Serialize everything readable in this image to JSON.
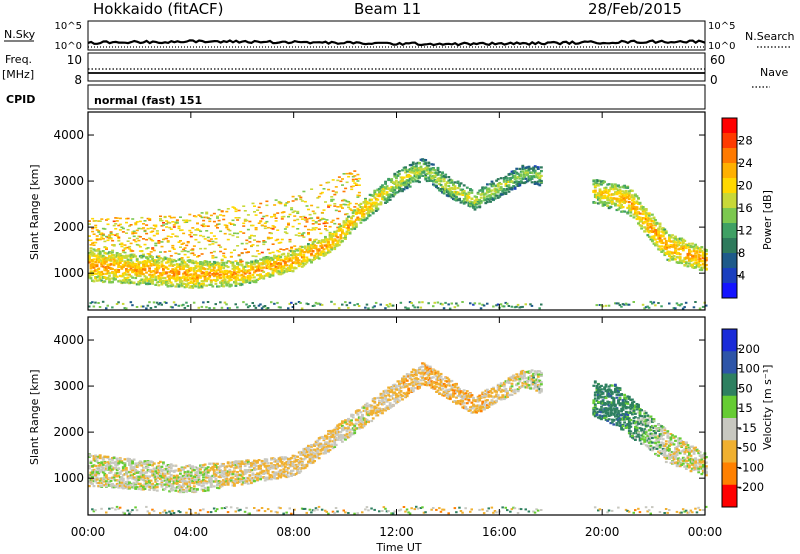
{
  "header": {
    "station": "Hokkaido (fitACF)",
    "beam": "Beam 11",
    "date": "28/Feb/2015"
  },
  "left_labels": {
    "nsky": "N.Sky",
    "freq": "Freq.",
    "mhz": "[MHz]",
    "cpid": "CPID"
  },
  "right_labels": {
    "nsearch": "N.Search",
    "nave": "Nave"
  },
  "noise_panel": {
    "ticks_left": [
      "10^5",
      "10^0"
    ],
    "ticks_right": [
      "10^5",
      "10^0"
    ]
  },
  "freq_panel": {
    "ticks_left": [
      "10",
      "8"
    ],
    "ticks_right": [
      "60",
      "0"
    ]
  },
  "cpid_panel": {
    "text": "normal (fast) 151"
  },
  "panels": {
    "power": {
      "ylabel": "Slant Range [km]",
      "cbar_label": "Power [dB]",
      "cbar_ticks": [
        "28",
        "24",
        "20",
        "16",
        "12",
        "8",
        "4"
      ],
      "cbar_colors": [
        "#ff0000",
        "#ff3b00",
        "#ff7a00",
        "#ffb000",
        "#ffd800",
        "#c8d838",
        "#7cc850",
        "#3fa064",
        "#2e7a5c",
        "#1e5a8a",
        "#1a3fbf",
        "#1414ff"
      ]
    },
    "velocity": {
      "ylabel": "Slant Range [km]",
      "cbar_label": "Velocity [m s⁻¹]",
      "cbar_ticks": [
        "200",
        "100",
        "50",
        "15",
        "-15",
        "-50",
        "-100",
        "-200"
      ],
      "cbar_colors": [
        "#1a2bd8",
        "#2e55a8",
        "#2e8060",
        "#66cc33",
        "#c8c8c0",
        "#f0b030",
        "#ff8000",
        "#ff0000"
      ]
    }
  },
  "xaxis": {
    "label": "Time UT",
    "ticks": [
      "00:00",
      "04:00",
      "08:00",
      "12:00",
      "16:00",
      "20:00",
      "00:00"
    ]
  },
  "yaxis_ticks": [
    "1000",
    "2000",
    "3000",
    "4000"
  ],
  "chart_data": [
    {
      "type": "heatmap",
      "title": "Hokkaido (fitACF) Beam 11 28/Feb/2015",
      "xlabel": "Time UT",
      "ylabel": "Slant Range [km]",
      "colorbar": "Power [dB]",
      "xlim": [
        "00:00",
        "24:00"
      ],
      "ylim": [
        200,
        4500
      ],
      "clim": [
        0,
        32
      ],
      "echo_band": [
        {
          "t": 0,
          "r": 1200,
          "w": 700,
          "p": 28
        },
        {
          "t": 2,
          "r": 1100,
          "w": 650,
          "p": 27
        },
        {
          "t": 4,
          "r": 1000,
          "w": 600,
          "p": 28
        },
        {
          "t": 6,
          "r": 1000,
          "w": 500,
          "p": 27
        },
        {
          "t": 8,
          "r": 1300,
          "w": 450,
          "p": 28
        },
        {
          "t": 9.5,
          "r": 1700,
          "w": 400,
          "p": 28
        },
        {
          "t": 10.5,
          "r": 2300,
          "w": 450,
          "p": 27
        },
        {
          "t": 12,
          "r": 3000,
          "w": 500,
          "p": 22
        },
        {
          "t": 13,
          "r": 3300,
          "w": 500,
          "p": 20
        },
        {
          "t": 14,
          "r": 2900,
          "w": 450,
          "p": 22
        },
        {
          "t": 15,
          "r": 2600,
          "w": 400,
          "p": 22
        },
        {
          "t": 16,
          "r": 2900,
          "w": 450,
          "p": 20
        },
        {
          "t": 17,
          "r": 3200,
          "w": 400,
          "p": 18
        },
        {
          "t": 21,
          "r": 2600,
          "w": 600,
          "p": 27
        },
        {
          "t": 22.5,
          "r": 1600,
          "w": 600,
          "p": 28
        },
        {
          "t": 24,
          "r": 1300,
          "w": 500,
          "p": 28
        }
      ],
      "diffuse_top": [
        {
          "t": 0,
          "r": 2200
        },
        {
          "t": 4,
          "r": 2300
        },
        {
          "t": 8,
          "r": 2700
        },
        {
          "t": 9.5,
          "r": 3100
        },
        {
          "t": 10.5,
          "r": 3300
        }
      ]
    },
    {
      "type": "heatmap",
      "title": "",
      "xlabel": "Time UT",
      "ylabel": "Slant Range [km]",
      "colorbar": "Velocity [m s⁻¹]",
      "xlim": [
        "00:00",
        "24:00"
      ],
      "ylim": [
        200,
        4500
      ],
      "clim": [
        -200,
        200
      ],
      "echo_band": [
        {
          "t": 0,
          "r": 1200,
          "w": 700,
          "v": 0
        },
        {
          "t": 4,
          "r": 1000,
          "w": 600,
          "v": 0
        },
        {
          "t": 8,
          "r": 1300,
          "w": 450,
          "v": -20
        },
        {
          "t": 10.5,
          "r": 2300,
          "w": 450,
          "v": -10
        },
        {
          "t": 13,
          "r": 3300,
          "w": 500,
          "v": -30
        },
        {
          "t": 15,
          "r": 2600,
          "w": 400,
          "v": -30
        },
        {
          "t": 17,
          "r": 3200,
          "w": 400,
          "v": 0
        },
        {
          "t": 20.5,
          "r": 2600,
          "w": 900,
          "v": 60
        },
        {
          "t": 22.5,
          "r": 1700,
          "w": 700,
          "v": 0
        },
        {
          "t": 24,
          "r": 1300,
          "w": 500,
          "v": 0
        }
      ]
    }
  ]
}
